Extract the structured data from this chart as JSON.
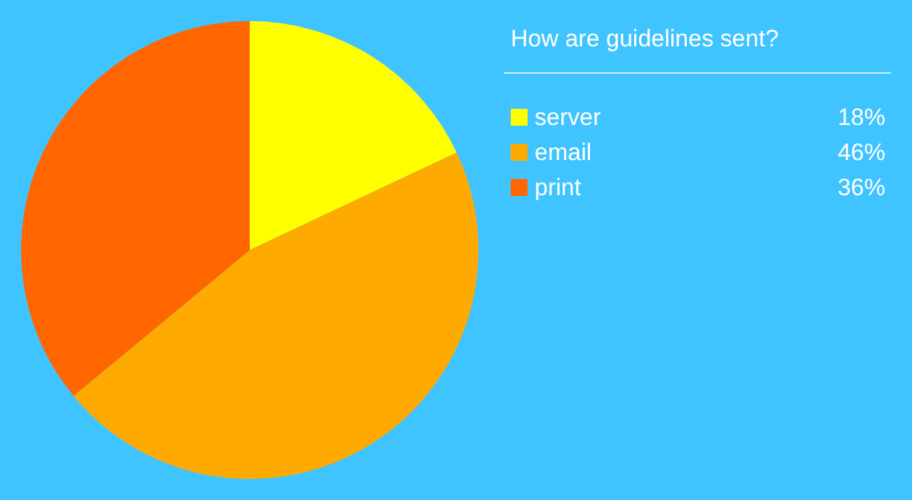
{
  "chart_data": {
    "type": "pie",
    "title": "How are guidelines sent?",
    "categories": [
      "server",
      "email",
      "print"
    ],
    "values": [
      18,
      46,
      36
    ],
    "colors": [
      "#ffff00",
      "#ffaa00",
      "#ff6600"
    ],
    "value_labels": [
      "18%",
      "46%",
      "36%"
    ],
    "legend": "right"
  }
}
